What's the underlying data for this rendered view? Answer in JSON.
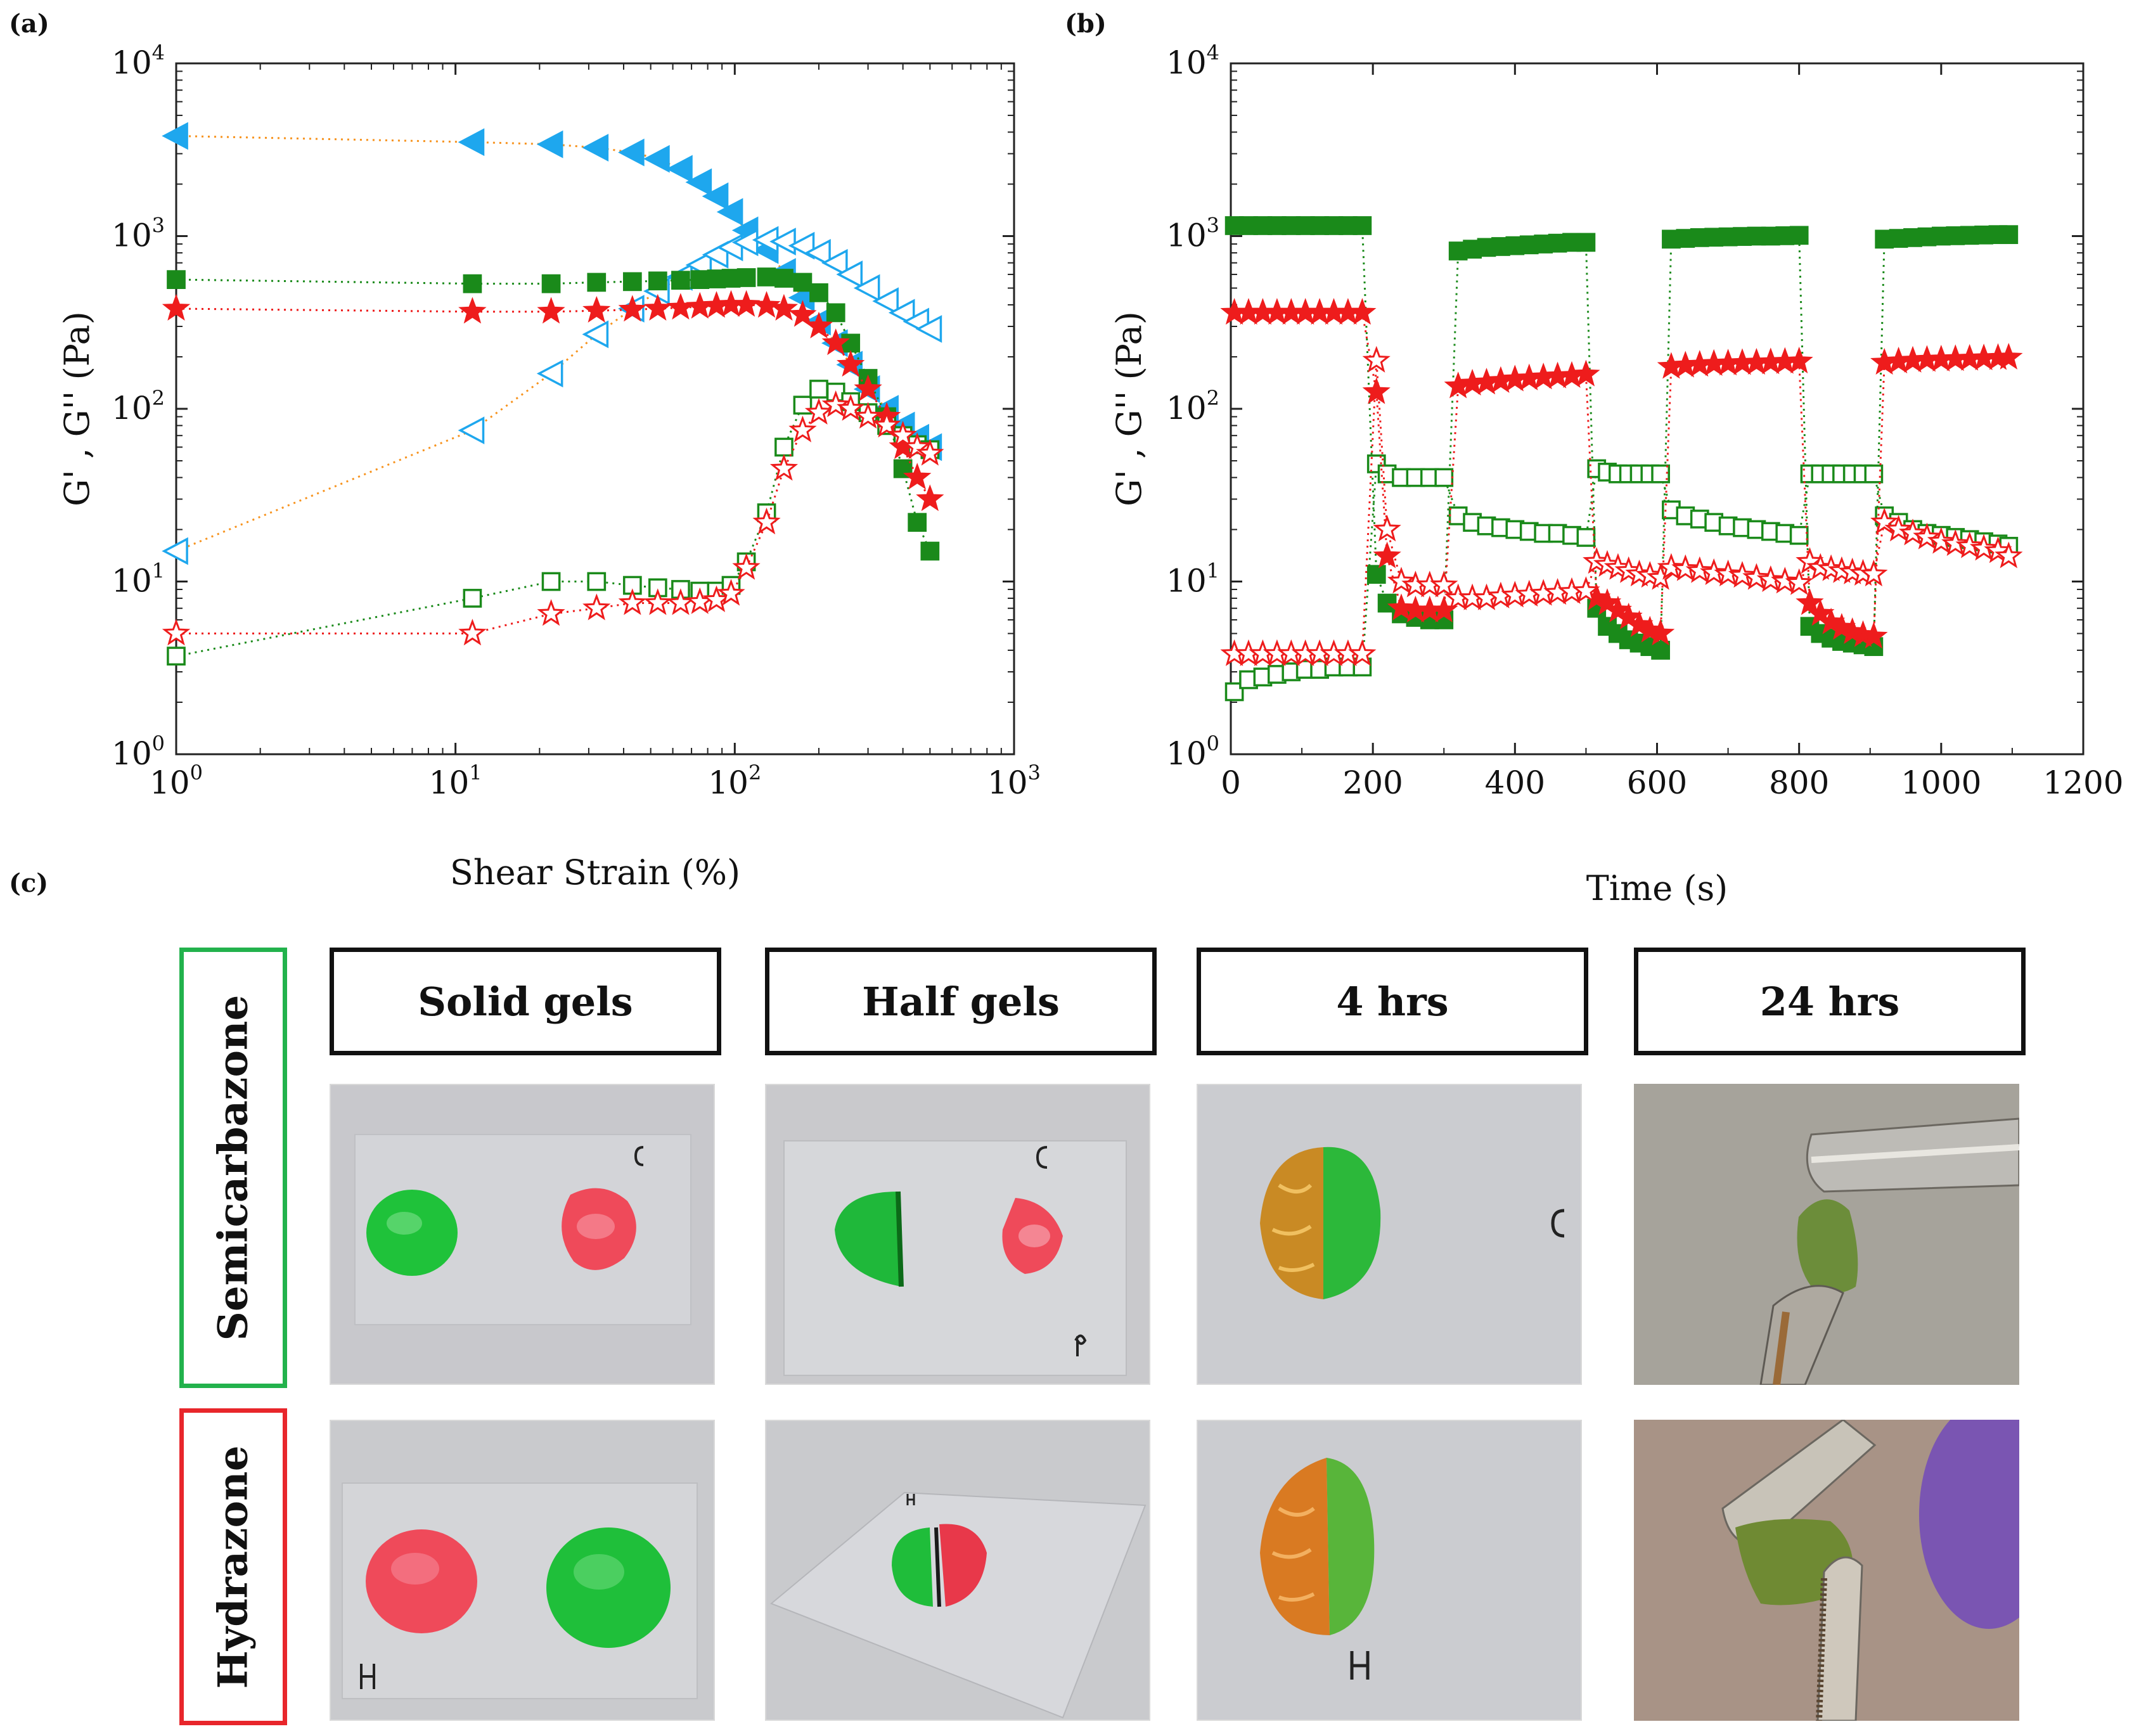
{
  "panels": {
    "a_label": "(a)",
    "b_label": "(b)",
    "c_label": "(c)"
  },
  "chart_data": [
    {
      "id": "a",
      "type": "scatter",
      "x_scale": "log",
      "y_scale": "log",
      "xlim": [
        1,
        1000
      ],
      "ylim": [
        1,
        10000
      ],
      "xlabel": "Shear Strain (%)",
      "ylabel": "G' , G'' (Pa)",
      "x_ticks": [
        {
          "base": "10",
          "exp": "0"
        },
        {
          "base": "10",
          "exp": "1"
        },
        {
          "base": "10",
          "exp": "2"
        },
        {
          "base": "10",
          "exp": "3"
        }
      ],
      "y_ticks": [
        {
          "base": "10",
          "exp": "0"
        },
        {
          "base": "10",
          "exp": "1"
        },
        {
          "base": "10",
          "exp": "2"
        },
        {
          "base": "10",
          "exp": "3"
        },
        {
          "base": "10",
          "exp": "4"
        }
      ],
      "series": [
        {
          "name": "G' blue",
          "color": "#1ea7ee",
          "line_color": "#f7931e",
          "marker": "triangle-left",
          "filled": true,
          "x": [
            1,
            11.5,
            22,
            32,
            43,
            53,
            64,
            75,
            86,
            97,
            110,
            130,
            150,
            175,
            200,
            230,
            260,
            300,
            350,
            400,
            450,
            500
          ],
          "y": [
            3800,
            3500,
            3400,
            3250,
            3050,
            2800,
            2450,
            2050,
            1700,
            1380,
            1080,
            830,
            620,
            440,
            320,
            240,
            180,
            130,
            100,
            80,
            68,
            60
          ]
        },
        {
          "name": "G'' blue",
          "color": "#1ea7ee",
          "line_color": "#f7931e",
          "marker": "triangle-left",
          "filled": false,
          "x": [
            1,
            11.5,
            22,
            32,
            43,
            53,
            64,
            75,
            86,
            97,
            110,
            130,
            150,
            175,
            200,
            230,
            260,
            300,
            350,
            400,
            450,
            500
          ],
          "y": [
            15,
            75,
            160,
            270,
            380,
            480,
            580,
            680,
            780,
            860,
            920,
            950,
            930,
            880,
            800,
            700,
            600,
            500,
            420,
            360,
            320,
            290
          ]
        },
        {
          "name": "G' green",
          "color": "#1a8a1a",
          "line_color": "#1a8a1a",
          "marker": "square",
          "filled": true,
          "x": [
            1,
            11.5,
            22,
            32,
            43,
            53,
            64,
            75,
            86,
            97,
            110,
            130,
            150,
            175,
            200,
            230,
            260,
            300,
            350,
            400,
            450,
            500
          ],
          "y": [
            560,
            530,
            530,
            540,
            545,
            550,
            555,
            560,
            565,
            570,
            575,
            580,
            570,
            540,
            470,
            360,
            240,
            150,
            90,
            45,
            22,
            15
          ]
        },
        {
          "name": "G'' green",
          "color": "#1a8a1a",
          "line_color": "#1a8a1a",
          "marker": "square",
          "filled": false,
          "x": [
            1,
            11.5,
            22,
            32,
            43,
            53,
            64,
            75,
            86,
            97,
            110,
            130,
            150,
            175,
            200,
            230,
            260,
            300,
            350,
            400,
            450,
            500
          ],
          "y": [
            3.7,
            8,
            10,
            10,
            9.5,
            9.2,
            9,
            8.8,
            8.8,
            9.5,
            13,
            25,
            60,
            105,
            130,
            125,
            110,
            95,
            80,
            70,
            62,
            58
          ]
        },
        {
          "name": "G' red",
          "color": "#ee1c1c",
          "line_color": "#ee1c1c",
          "marker": "star",
          "filled": true,
          "x": [
            1,
            11.5,
            22,
            32,
            43,
            53,
            64,
            75,
            86,
            97,
            110,
            130,
            150,
            175,
            200,
            230,
            260,
            300,
            350,
            400,
            450,
            500
          ],
          "y": [
            380,
            365,
            365,
            370,
            375,
            380,
            385,
            390,
            395,
            400,
            400,
            395,
            380,
            350,
            300,
            240,
            180,
            130,
            90,
            60,
            40,
            30
          ]
        },
        {
          "name": "G'' red",
          "color": "#ee1c1c",
          "line_color": "#ee1c1c",
          "marker": "star",
          "filled": false,
          "x": [
            1,
            11.5,
            22,
            32,
            43,
            53,
            64,
            75,
            86,
            97,
            110,
            130,
            150,
            175,
            200,
            230,
            260,
            300,
            350,
            400,
            450,
            500
          ],
          "y": [
            5,
            5,
            6.5,
            7,
            7.5,
            7.5,
            7.5,
            7.6,
            7.8,
            8.5,
            12,
            22,
            45,
            75,
            95,
            105,
            100,
            90,
            80,
            70,
            60,
            55
          ]
        }
      ]
    },
    {
      "id": "b",
      "type": "scatter",
      "x_scale": "linear",
      "y_scale": "log",
      "xlim": [
        0,
        1200
      ],
      "ylim": [
        1,
        10000
      ],
      "xlabel": "Time (s)",
      "ylabel": "G' , G'' (Pa)",
      "x_ticks": [
        "0",
        "200",
        "400",
        "600",
        "800",
        "1000",
        "1200"
      ],
      "y_ticks": [
        {
          "base": "10",
          "exp": "0"
        },
        {
          "base": "10",
          "exp": "1"
        },
        {
          "base": "10",
          "exp": "2"
        },
        {
          "base": "10",
          "exp": "3"
        },
        {
          "base": "10",
          "exp": "4"
        }
      ],
      "series": [
        {
          "name": "G' green",
          "color": "#1a8a1a",
          "marker": "square",
          "filled": true,
          "x": [
            5,
            25,
            45,
            65,
            85,
            105,
            125,
            145,
            165,
            185,
            205,
            220,
            240,
            260,
            280,
            300,
            320,
            340,
            360,
            380,
            400,
            420,
            440,
            460,
            480,
            500,
            515,
            530,
            545,
            560,
            575,
            590,
            605,
            620,
            640,
            660,
            680,
            700,
            720,
            740,
            760,
            780,
            800,
            815,
            830,
            845,
            860,
            875,
            890,
            905,
            920,
            940,
            960,
            980,
            1000,
            1020,
            1040,
            1060,
            1080,
            1095
          ],
          "y": [
            1150,
            1150,
            1150,
            1150,
            1150,
            1150,
            1150,
            1150,
            1150,
            1150,
            11,
            7.5,
            6.5,
            6.2,
            6,
            6,
            820,
            840,
            860,
            870,
            880,
            890,
            900,
            910,
            920,
            920,
            7,
            5.5,
            5,
            4.6,
            4.4,
            4.2,
            4,
            960,
            970,
            980,
            985,
            990,
            995,
            1000,
            1000,
            1005,
            1010,
            5.5,
            5,
            4.7,
            4.5,
            4.4,
            4.3,
            4.2,
            960,
            970,
            980,
            990,
            1000,
            1005,
            1010,
            1015,
            1020,
            1020
          ]
        },
        {
          "name": "G'' green",
          "color": "#1a8a1a",
          "marker": "square",
          "filled": false,
          "x": [
            5,
            25,
            45,
            65,
            85,
            105,
            125,
            145,
            165,
            185,
            205,
            220,
            240,
            260,
            280,
            300,
            320,
            340,
            360,
            380,
            400,
            420,
            440,
            460,
            480,
            500,
            515,
            530,
            545,
            560,
            575,
            590,
            605,
            620,
            640,
            660,
            680,
            700,
            720,
            740,
            760,
            780,
            800,
            815,
            830,
            845,
            860,
            875,
            890,
            905,
            920,
            940,
            960,
            980,
            1000,
            1020,
            1040,
            1060,
            1080,
            1095
          ],
          "y": [
            2.3,
            2.7,
            2.8,
            2.9,
            3,
            3.1,
            3.1,
            3.2,
            3.2,
            3.2,
            48,
            42,
            40,
            40,
            40,
            40,
            24,
            22,
            21,
            20.5,
            20,
            19.5,
            19,
            19,
            18.5,
            18,
            45,
            43,
            42,
            42,
            42,
            42,
            42,
            26,
            24,
            23,
            22,
            21,
            20.5,
            20,
            19.5,
            19,
            18.5,
            42,
            42,
            42,
            42,
            42,
            42,
            42,
            24,
            22,
            20,
            19,
            18.5,
            18,
            17.5,
            17,
            16.5,
            16
          ]
        },
        {
          "name": "G' red",
          "color": "#ee1c1c",
          "marker": "star",
          "filled": true,
          "x": [
            5,
            25,
            45,
            65,
            85,
            105,
            125,
            145,
            165,
            185,
            205,
            220,
            240,
            260,
            280,
            300,
            320,
            340,
            360,
            380,
            400,
            420,
            440,
            460,
            480,
            500,
            515,
            530,
            545,
            560,
            575,
            590,
            605,
            620,
            640,
            660,
            680,
            700,
            720,
            740,
            760,
            780,
            800,
            815,
            830,
            845,
            860,
            875,
            890,
            905,
            920,
            940,
            960,
            980,
            1000,
            1020,
            1040,
            1060,
            1080,
            1095
          ],
          "y": [
            360,
            360,
            360,
            360,
            360,
            360,
            360,
            360,
            360,
            360,
            125,
            14,
            7,
            6.8,
            6.8,
            6.8,
            135,
            140,
            142,
            145,
            148,
            150,
            152,
            154,
            155,
            158,
            8,
            7.5,
            6.8,
            6.2,
            5.6,
            5.2,
            5,
            175,
            178,
            180,
            182,
            183,
            184,
            185,
            186,
            187,
            188,
            7.5,
            6.5,
            5.8,
            5.4,
            5.1,
            4.9,
            4.8,
            185,
            188,
            190,
            192,
            193,
            194,
            195,
            196,
            197,
            198
          ]
        },
        {
          "name": "G'' red",
          "color": "#ee1c1c",
          "marker": "star",
          "filled": false,
          "x": [
            5,
            25,
            45,
            65,
            85,
            105,
            125,
            145,
            165,
            185,
            205,
            220,
            240,
            260,
            280,
            300,
            320,
            340,
            360,
            380,
            400,
            420,
            440,
            460,
            480,
            500,
            515,
            530,
            545,
            560,
            575,
            590,
            605,
            620,
            640,
            660,
            680,
            700,
            720,
            740,
            760,
            780,
            800,
            815,
            830,
            845,
            860,
            875,
            890,
            905,
            920,
            940,
            960,
            980,
            1000,
            1020,
            1040,
            1060,
            1080,
            1095
          ],
          "y": [
            3.8,
            3.8,
            3.8,
            3.8,
            3.8,
            3.8,
            3.8,
            3.8,
            3.8,
            3.8,
            190,
            20,
            10,
            9.5,
            9.5,
            9.5,
            8,
            8,
            8,
            8.2,
            8.3,
            8.4,
            8.5,
            8.6,
            8.7,
            8.8,
            13,
            12.5,
            12,
            11.5,
            11,
            10.8,
            10.5,
            12,
            11.8,
            11.5,
            11.2,
            11,
            10.8,
            10.5,
            10.2,
            10,
            9.8,
            13,
            12,
            11.8,
            11.5,
            11.3,
            11.1,
            11,
            22,
            20,
            19,
            18,
            17,
            16.5,
            16,
            15.5,
            15,
            14
          ]
        }
      ]
    }
  ],
  "figure_c": {
    "columns": [
      "Solid gels",
      "Half gels",
      "4 hrs",
      "24 hrs"
    ],
    "rows": [
      {
        "label": "Semicarbazone",
        "border_color": "#22b24c"
      },
      {
        "label": "Hydrazone",
        "border_color": "#e8262b"
      }
    ],
    "gel_colors": {
      "green": "#1fc23a",
      "red": "#ef4a5a",
      "orange": "#c98a24"
    }
  }
}
